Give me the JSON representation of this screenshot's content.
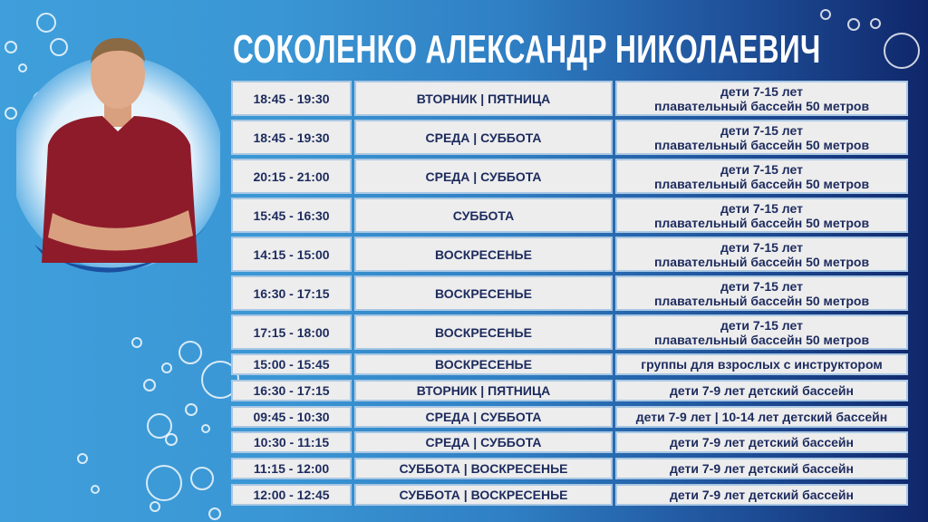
{
  "title": "СОКОЛЕНКО АЛЕКСАНДР НИКОЛАЕВИЧ",
  "colors": {
    "cell_text": "#1d2b5e",
    "cell_bg": "#ededed",
    "bg_left": "#3f9fdb",
    "bg_right": "#10266a"
  },
  "photo": {
    "description_icon": "coach-portrait",
    "shirt_color": "#8e1b2a"
  },
  "schedule": [
    {
      "time": "18:45 - 19:30",
      "days": "ВТОРНИК | ПЯТНИЦА",
      "info": [
        "дети 7-15 лет",
        "плавательный бассейн 50 метров"
      ]
    },
    {
      "time": "18:45 - 19:30",
      "days": "СРЕДА | СУББОТА",
      "info": [
        "дети 7-15 лет",
        "плавательный бассейн 50 метров"
      ]
    },
    {
      "time": "20:15 - 21:00",
      "days": "СРЕДА | СУББОТА",
      "info": [
        "дети 7-15 лет",
        "плавательный бассейн 50 метров"
      ]
    },
    {
      "time": "15:45 - 16:30",
      "days": "СУББОТА",
      "info": [
        "дети 7-15 лет",
        "плавательный бассейн 50 метров"
      ]
    },
    {
      "time": "14:15 - 15:00",
      "days": "ВОСКРЕСЕНЬЕ",
      "info": [
        "дети 7-15 лет",
        "плавательный бассейн 50 метров"
      ]
    },
    {
      "time": "16:30 - 17:15",
      "days": "ВОСКРЕСЕНЬЕ",
      "info": [
        "дети 7-15 лет",
        "плавательный бассейн 50 метров"
      ]
    },
    {
      "time": "17:15 - 18:00",
      "days": "ВОСКРЕСЕНЬЕ",
      "info": [
        "дети 7-15 лет",
        "плавательный бассейн 50 метров"
      ]
    },
    {
      "time": "15:00 - 15:45",
      "days": "ВОСКРЕСЕНЬЕ",
      "info": [
        "группы для взрослых с инструктором"
      ]
    },
    {
      "time": "16:30 - 17:15",
      "days": "ВТОРНИК | ПЯТНИЦА",
      "info": [
        "дети 7-9 лет детский бассейн"
      ]
    },
    {
      "time": "09:45 - 10:30",
      "days": "СРЕДА | СУББОТА",
      "info": [
        "дети 7-9 лет | 10-14 лет детский бассейн"
      ]
    },
    {
      "time": "10:30 - 11:15",
      "days": "СРЕДА | СУББОТА",
      "info": [
        "дети 7-9 лет детский бассейн"
      ]
    },
    {
      "time": "11:15 - 12:00",
      "days": "СУББОТА | ВОСКРЕСЕНЬЕ",
      "info": [
        "дети 7-9 лет детский бассейн"
      ]
    },
    {
      "time": "12:00 - 12:45",
      "days": "СУББОТА | ВОСКРЕСЕНЬЕ",
      "info": [
        "дети 7-9 лет детский бассейн"
      ]
    }
  ]
}
